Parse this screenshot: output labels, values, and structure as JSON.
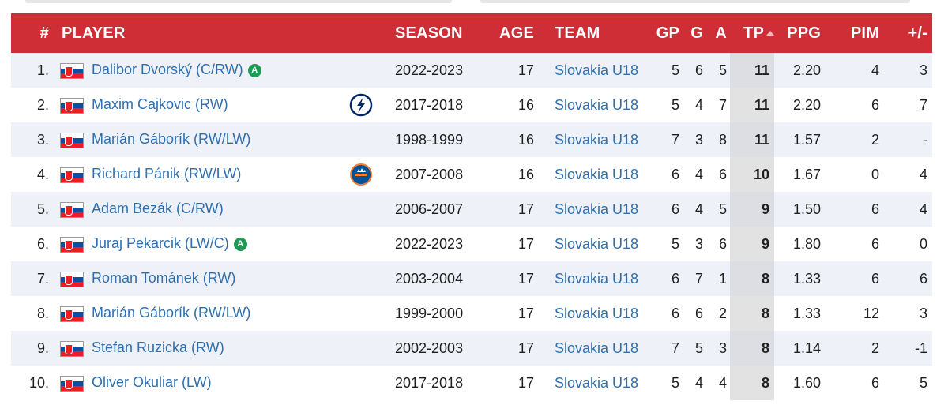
{
  "table": {
    "headers": {
      "rank": "#",
      "player": "PLAYER",
      "season": "SEASON",
      "age": "AGE",
      "team": "TEAM",
      "gp": "GP",
      "g": "G",
      "a": "A",
      "tp": "TP",
      "ppg": "PPG",
      "pim": "PIM",
      "pm": "+/-"
    },
    "accent_color": "#cf2e37",
    "link_color": "#2f6fae",
    "rows": [
      {
        "rank": "1.",
        "player": "Dalibor Dvorský (C/RW)",
        "badge": "A",
        "logo": "",
        "season": "2022-2023",
        "age": "17",
        "team": "Slovakia U18",
        "gp": "5",
        "g": "6",
        "a": "5",
        "tp": "11",
        "ppg": "2.20",
        "pim": "4",
        "pm": "3"
      },
      {
        "rank": "2.",
        "player": "Maxim Cajkovic (RW)",
        "badge": "",
        "logo": "lightning-logo",
        "season": "2017-2018",
        "age": "16",
        "team": "Slovakia U18",
        "gp": "5",
        "g": "4",
        "a": "7",
        "tp": "11",
        "ppg": "2.20",
        "pim": "6",
        "pm": "7"
      },
      {
        "rank": "3.",
        "player": "Marián Gáborík (RW/LW)",
        "badge": "",
        "logo": "",
        "season": "1998-1999",
        "age": "16",
        "team": "Slovakia U18",
        "gp": "7",
        "g": "3",
        "a": "8",
        "tp": "11",
        "ppg": "1.57",
        "pim": "2",
        "pm": "-"
      },
      {
        "rank": "4.",
        "player": "Richard Pánik (RW/LW)",
        "badge": "",
        "logo": "islanders-logo",
        "season": "2007-2008",
        "age": "16",
        "team": "Slovakia U18",
        "gp": "6",
        "g": "4",
        "a": "6",
        "tp": "10",
        "ppg": "1.67",
        "pim": "0",
        "pm": "4"
      },
      {
        "rank": "5.",
        "player": "Adam Bezák (C/RW)",
        "badge": "",
        "logo": "",
        "season": "2006-2007",
        "age": "17",
        "team": "Slovakia U18",
        "gp": "6",
        "g": "4",
        "a": "5",
        "tp": "9",
        "ppg": "1.50",
        "pim": "6",
        "pm": "4"
      },
      {
        "rank": "6.",
        "player": "Juraj Pekarcik (LW/C)",
        "badge": "A",
        "logo": "",
        "season": "2022-2023",
        "age": "17",
        "team": "Slovakia U18",
        "gp": "5",
        "g": "3",
        "a": "6",
        "tp": "9",
        "ppg": "1.80",
        "pim": "6",
        "pm": "0"
      },
      {
        "rank": "7.",
        "player": "Roman Tománek (RW)",
        "badge": "",
        "logo": "",
        "season": "2003-2004",
        "age": "17",
        "team": "Slovakia U18",
        "gp": "6",
        "g": "7",
        "a": "1",
        "tp": "8",
        "ppg": "1.33",
        "pim": "6",
        "pm": "6"
      },
      {
        "rank": "8.",
        "player": "Marián Gáborík (RW/LW)",
        "badge": "",
        "logo": "",
        "season": "1999-2000",
        "age": "17",
        "team": "Slovakia U18",
        "gp": "6",
        "g": "6",
        "a": "2",
        "tp": "8",
        "ppg": "1.33",
        "pim": "12",
        "pm": "3"
      },
      {
        "rank": "9.",
        "player": "Stefan Ruzicka (RW)",
        "badge": "",
        "logo": "",
        "season": "2002-2003",
        "age": "17",
        "team": "Slovakia U18",
        "gp": "7",
        "g": "5",
        "a": "3",
        "tp": "8",
        "ppg": "1.14",
        "pim": "2",
        "pm": "-1"
      },
      {
        "rank": "10.",
        "player": "Oliver Okuliar (LW)",
        "badge": "",
        "logo": "",
        "season": "2017-2018",
        "age": "17",
        "team": "Slovakia U18",
        "gp": "5",
        "g": "4",
        "a": "4",
        "tp": "8",
        "ppg": "1.60",
        "pim": "6",
        "pm": "5"
      }
    ]
  }
}
